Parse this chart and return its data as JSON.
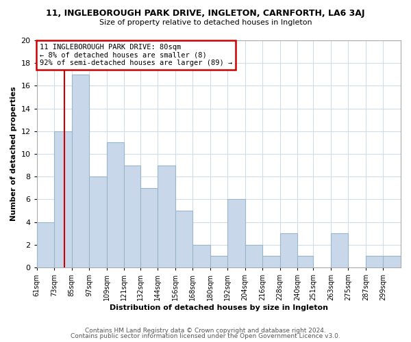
{
  "title": "11, INGLEBOROUGH PARK DRIVE, INGLETON, CARNFORTH, LA6 3AJ",
  "subtitle": "Size of property relative to detached houses in Ingleton",
  "xlabel": "Distribution of detached houses by size in Ingleton",
  "ylabel": "Number of detached properties",
  "footer_line1": "Contains HM Land Registry data © Crown copyright and database right 2024.",
  "footer_line2": "Contains public sector information licensed under the Open Government Licence v3.0.",
  "bin_labels": [
    "61sqm",
    "73sqm",
    "85sqm",
    "97sqm",
    "109sqm",
    "121sqm",
    "132sqm",
    "144sqm",
    "156sqm",
    "168sqm",
    "180sqm",
    "192sqm",
    "204sqm",
    "216sqm",
    "228sqm",
    "240sqm",
    "251sqm",
    "263sqm",
    "275sqm",
    "287sqm",
    "299sqm"
  ],
  "bin_lefts": [
    61,
    73,
    85,
    97,
    109,
    121,
    132,
    144,
    156,
    168,
    180,
    192,
    204,
    216,
    228,
    240,
    251,
    263,
    275,
    287,
    299
  ],
  "bar_values": [
    4,
    12,
    17,
    8,
    11,
    9,
    7,
    9,
    5,
    2,
    1,
    6,
    2,
    1,
    3,
    1,
    0,
    3,
    0,
    1,
    1
  ],
  "bar_color": "#c8d8ea",
  "bar_edge_color": "#9ab4cc",
  "reference_line_x": 80,
  "ylim": [
    0,
    20
  ],
  "xlim_min": 61,
  "xlim_max": 311,
  "annotation_line1": "11 INGLEBOROUGH PARK DRIVE: 80sqm",
  "annotation_line2": "← 8% of detached houses are smaller (8)",
  "annotation_line3": "92% of semi-detached houses are larger (89) →",
  "annotation_box_facecolor": "#ffffff",
  "annotation_box_edgecolor": "#cc0000",
  "ref_line_color": "#cc0000",
  "background_color": "#ffffff",
  "grid_color": "#d0dce8",
  "title_fontsize": 9,
  "subtitle_fontsize": 8,
  "axis_label_fontsize": 8,
  "tick_fontsize": 7,
  "footer_fontsize": 6.5,
  "footer_color": "#555555"
}
